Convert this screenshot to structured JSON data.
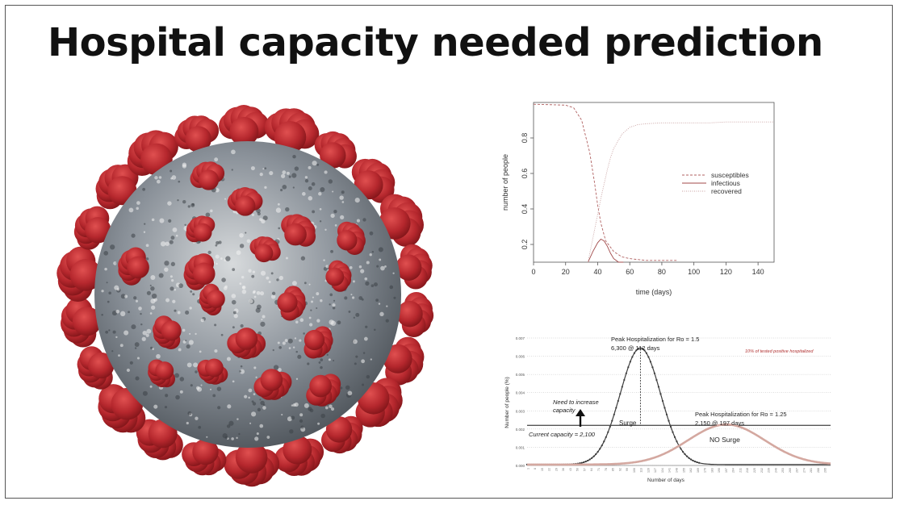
{
  "slide": {
    "title": "Hospital capacity needed prediction"
  },
  "virus_image": {
    "icon": "coronavirus-illustration-icon",
    "colors": {
      "body": "#8a9199",
      "spike": "#b5272d",
      "spike_dark": "#7e1418",
      "shadow": "#4a5056"
    }
  },
  "chart_data": [
    {
      "type": "line",
      "title": "",
      "xlabel": "time (days)",
      "ylabel": "number of people",
      "xlim": [
        0,
        150
      ],
      "ylim": [
        0.1,
        1.0
      ],
      "x_ticks": [
        0,
        20,
        40,
        60,
        80,
        100,
        120,
        140
      ],
      "y_ticks": [
        0.2,
        0.4,
        0.6,
        0.8
      ],
      "grid": false,
      "legend": "center-right",
      "series": [
        {
          "name": "susceptibles",
          "color": "#b06060",
          "dash": "dashed",
          "x": [
            0,
            20,
            25,
            30,
            35,
            38,
            40,
            42,
            45,
            50,
            55,
            60,
            70,
            80,
            90
          ],
          "y": [
            0.99,
            0.985,
            0.97,
            0.9,
            0.72,
            0.55,
            0.42,
            0.32,
            0.22,
            0.16,
            0.13,
            0.12,
            0.11,
            0.11,
            0.11
          ]
        },
        {
          "name": "infectious",
          "color": "#a04848",
          "dash": "solid",
          "x": [
            34,
            37,
            40,
            42,
            44,
            46,
            48,
            50,
            53,
            56
          ],
          "y": [
            0.1,
            0.16,
            0.21,
            0.23,
            0.22,
            0.19,
            0.15,
            0.12,
            0.1,
            0.1
          ]
        },
        {
          "name": "recovered",
          "color": "#c8a0a0",
          "dash": "dotted",
          "x": [
            34,
            36,
            38,
            40,
            42,
            44,
            46,
            48,
            50,
            55,
            60,
            65,
            70,
            80,
            90,
            100,
            110,
            120,
            130,
            150
          ],
          "y": [
            0.1,
            0.19,
            0.28,
            0.37,
            0.46,
            0.54,
            0.62,
            0.69,
            0.74,
            0.82,
            0.86,
            0.875,
            0.88,
            0.885,
            0.885,
            0.885,
            0.885,
            0.89,
            0.89,
            0.89
          ]
        }
      ]
    },
    {
      "type": "line",
      "title": "",
      "xlabel": "Number of days",
      "ylabel": "Number of people (%)",
      "xlim": [
        0,
        300
      ],
      "ylim": [
        0,
        0.007
      ],
      "y_ticks": [
        0,
        0.001,
        0.002,
        0.003,
        0.004,
        0.005,
        0.006,
        0.007
      ],
      "y_tick_labels": [
        "0.000",
        "0.001",
        "0.002",
        "0.003",
        "0.004",
        "0.005",
        "0.006",
        "0.007"
      ],
      "x_tick_step": 7,
      "current_capacity": 0.0022,
      "grid": true,
      "series": [
        {
          "name": "Ro = 1.5",
          "color": "#3c3c3c",
          "peak_x": 112,
          "peak_y": 0.0064,
          "width": 20
        },
        {
          "name": "Ro = 1.25",
          "color": "#d4a8a0",
          "peak_x": 197,
          "peak_y": 0.0022,
          "width": 38
        }
      ],
      "annotations": {
        "peak1_line1": "Peak Hospitalization for Ro = 1.5",
        "peak1_line2": "6,300 @ 112 days",
        "note": "10% of tested positive hospitalized",
        "increase_line1": "Need to increase",
        "increase_line2": "capacity",
        "current_capacity": "Current capacity = 2,100",
        "surge": "Surge",
        "peak2_line1": "Peak Hospitalization for Ro = 1.25",
        "peak2_line2": "2,150 @ 197 days",
        "no_surge": "NO Surge"
      }
    }
  ]
}
